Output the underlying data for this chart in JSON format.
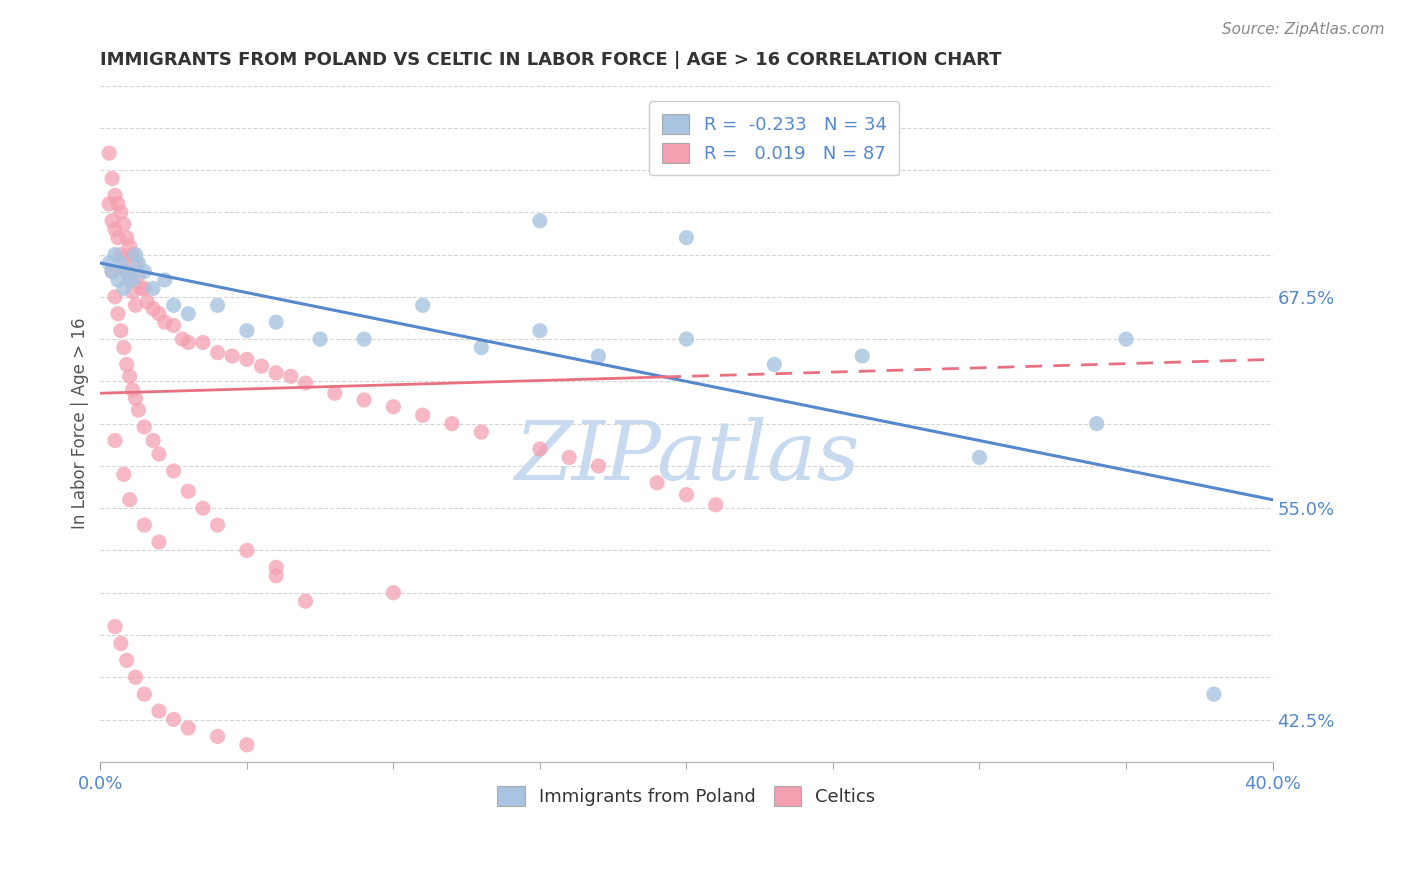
{
  "title": "IMMIGRANTS FROM POLAND VS CELTIC IN LABOR FORCE | AGE > 16 CORRELATION CHART",
  "source_text": "Source: ZipAtlas.com",
  "ylabel": "In Labor Force | Age > 16",
  "xlim": [
    0.0,
    0.4
  ],
  "ylim": [
    0.4,
    0.8
  ],
  "poland_R": -0.233,
  "poland_N": 34,
  "celtics_R": 0.019,
  "celtics_N": 87,
  "poland_color": "#a8c4e0",
  "celtics_color": "#f4a0b0",
  "poland_line_color": "#5588cc",
  "celtics_line_color": "#e87080",
  "background_color": "#ffffff",
  "grid_color": "#cccccc",
  "title_color": "#333333",
  "ytick_positions": [
    0.4,
    0.425,
    0.45,
    0.475,
    0.5,
    0.525,
    0.55,
    0.575,
    0.6,
    0.625,
    0.65,
    0.675,
    0.7,
    0.725,
    0.75,
    0.775,
    0.8
  ],
  "ytick_shown": {
    "0.675": "67.5%",
    "0.55": "55.0%",
    "0.425": "42.5%"
  },
  "poland_trendline": [
    0.695,
    0.555
  ],
  "celtics_trendline_solid_end": 0.22,
  "celtics_trendline": [
    0.618,
    0.638
  ],
  "poland_x": [
    0.003,
    0.004,
    0.005,
    0.006,
    0.007,
    0.008,
    0.009,
    0.01,
    0.011,
    0.012,
    0.013,
    0.015,
    0.018,
    0.022,
    0.025,
    0.03,
    0.04,
    0.05,
    0.06,
    0.075,
    0.09,
    0.11,
    0.13,
    0.15,
    0.17,
    0.2,
    0.23,
    0.26,
    0.3,
    0.34,
    0.15,
    0.2,
    0.35,
    0.38
  ],
  "poland_y": [
    0.695,
    0.69,
    0.7,
    0.685,
    0.695,
    0.68,
    0.69,
    0.688,
    0.685,
    0.7,
    0.695,
    0.69,
    0.68,
    0.685,
    0.67,
    0.665,
    0.67,
    0.655,
    0.66,
    0.65,
    0.65,
    0.67,
    0.645,
    0.655,
    0.64,
    0.65,
    0.635,
    0.64,
    0.58,
    0.6,
    0.72,
    0.71,
    0.65,
    0.44
  ],
  "celtics_x": [
    0.003,
    0.003,
    0.004,
    0.004,
    0.005,
    0.005,
    0.006,
    0.006,
    0.007,
    0.007,
    0.008,
    0.008,
    0.009,
    0.009,
    0.01,
    0.01,
    0.011,
    0.011,
    0.012,
    0.012,
    0.013,
    0.014,
    0.015,
    0.016,
    0.018,
    0.02,
    0.022,
    0.025,
    0.028,
    0.03,
    0.035,
    0.04,
    0.045,
    0.05,
    0.055,
    0.06,
    0.065,
    0.07,
    0.08,
    0.09,
    0.1,
    0.11,
    0.12,
    0.13,
    0.15,
    0.16,
    0.17,
    0.19,
    0.2,
    0.21,
    0.004,
    0.005,
    0.006,
    0.007,
    0.008,
    0.009,
    0.01,
    0.011,
    0.012,
    0.013,
    0.015,
    0.018,
    0.02,
    0.025,
    0.03,
    0.035,
    0.04,
    0.05,
    0.06,
    0.07,
    0.005,
    0.007,
    0.009,
    0.012,
    0.015,
    0.02,
    0.025,
    0.03,
    0.04,
    0.05,
    0.005,
    0.008,
    0.01,
    0.015,
    0.02,
    0.06,
    0.1
  ],
  "celtics_y": [
    0.76,
    0.73,
    0.745,
    0.72,
    0.735,
    0.715,
    0.73,
    0.71,
    0.725,
    0.7,
    0.718,
    0.698,
    0.71,
    0.69,
    0.705,
    0.685,
    0.7,
    0.678,
    0.695,
    0.67,
    0.688,
    0.68,
    0.68,
    0.672,
    0.668,
    0.665,
    0.66,
    0.658,
    0.65,
    0.648,
    0.648,
    0.642,
    0.64,
    0.638,
    0.634,
    0.63,
    0.628,
    0.624,
    0.618,
    0.614,
    0.61,
    0.605,
    0.6,
    0.595,
    0.585,
    0.58,
    0.575,
    0.565,
    0.558,
    0.552,
    0.69,
    0.675,
    0.665,
    0.655,
    0.645,
    0.635,
    0.628,
    0.62,
    0.615,
    0.608,
    0.598,
    0.59,
    0.582,
    0.572,
    0.56,
    0.55,
    0.54,
    0.525,
    0.51,
    0.495,
    0.48,
    0.47,
    0.46,
    0.45,
    0.44,
    0.43,
    0.425,
    0.42,
    0.415,
    0.41,
    0.59,
    0.57,
    0.555,
    0.54,
    0.53,
    0.515,
    0.5
  ],
  "watermark_text": "ZIPatlas",
  "watermark_color": "#c8daf0",
  "watermark_fontsize": 60
}
